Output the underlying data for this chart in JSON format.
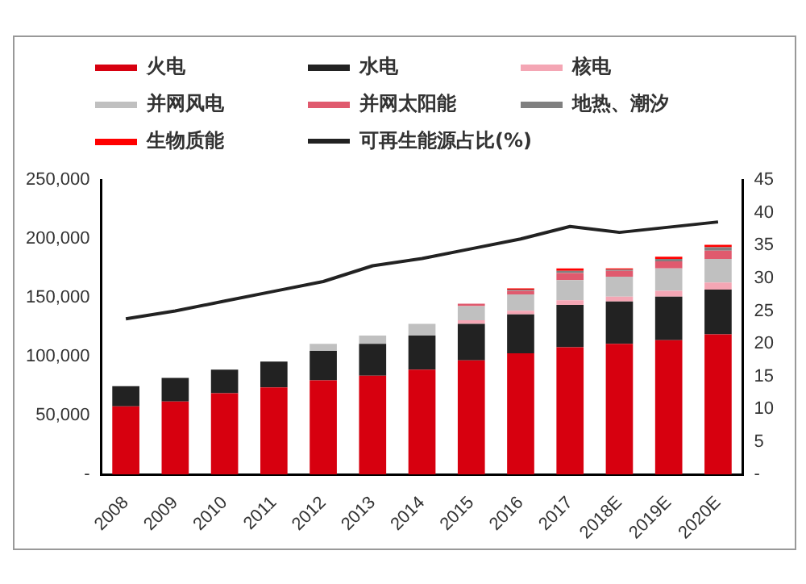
{
  "chart_data": {
    "type": "bar",
    "stacked": true,
    "legend": "top",
    "grid": false,
    "categories": [
      "2008",
      "2009",
      "2010",
      "2011",
      "2012",
      "2013",
      "2014",
      "2015",
      "2016",
      "2017",
      "2018E",
      "2019E",
      "2020E"
    ],
    "series": [
      {
        "name": "火电",
        "color": "#d7000f",
        "values": [
          58000,
          62000,
          69000,
          74000,
          80000,
          84000,
          89000,
          97000,
          103000,
          108000,
          111000,
          114000,
          119000
        ]
      },
      {
        "name": "水电",
        "color": "#222222",
        "values": [
          17000,
          20000,
          20000,
          22000,
          25000,
          27000,
          29000,
          31000,
          33000,
          36000,
          36000,
          37000,
          38000
        ]
      },
      {
        "name": "核电",
        "color": "#f4a6b4",
        "values": [
          null,
          null,
          null,
          null,
          null,
          null,
          null,
          3000,
          3000,
          4000,
          4000,
          5000,
          6000
        ]
      },
      {
        "name": "并网风电",
        "color": "#c0c0c0",
        "values": [
          null,
          null,
          null,
          null,
          6000,
          7000,
          10000,
          12000,
          14000,
          17000,
          17000,
          19000,
          20000
        ]
      },
      {
        "name": "并网太阳能",
        "color": "#e05a6e",
        "values": [
          null,
          null,
          null,
          null,
          null,
          null,
          null,
          2000,
          3000,
          6000,
          5000,
          6000,
          7000
        ]
      },
      {
        "name": "地热、潮汐",
        "color": "#808080",
        "values": [
          null,
          null,
          null,
          null,
          null,
          null,
          null,
          null,
          1000,
          2000,
          1000,
          2000,
          3000
        ]
      },
      {
        "name": "生物质能",
        "color": "#ff0000",
        "values": [
          null,
          null,
          null,
          null,
          null,
          null,
          null,
          null,
          1000,
          2000,
          1000,
          2000,
          2000
        ]
      },
      {
        "name": "可再生能源占比(%)",
        "type": "line",
        "axis": "y2",
        "color": "#222222",
        "marker": "none",
        "values": [
          23.8,
          25,
          26.5,
          28,
          29.5,
          31.9,
          33,
          34.5,
          36,
          37.9,
          37,
          37.8,
          38.6
        ]
      }
    ],
    "ylim": [
      0,
      250000
    ],
    "yticks": [
      {
        "value": 0,
        "label": "-"
      },
      {
        "value": 50000,
        "label": "50,000"
      },
      {
        "value": 100000,
        "label": "100,000"
      },
      {
        "value": 150000,
        "label": "150,000"
      },
      {
        "value": 200000,
        "label": "200,000"
      },
      {
        "value": 250000,
        "label": "250,000"
      }
    ],
    "y2lim": [
      0,
      45
    ],
    "y2ticks": [
      {
        "value": 0,
        "label": "-"
      },
      5,
      10,
      15,
      20,
      25,
      30,
      35,
      40,
      45
    ]
  }
}
